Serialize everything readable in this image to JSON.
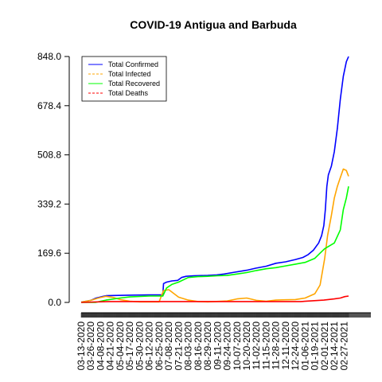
{
  "chart_data": {
    "type": "line",
    "title": "COVID-19 Antigua and Barbuda",
    "xlabel": "",
    "ylabel": "",
    "ylim": [
      0,
      848
    ],
    "yticks": [
      "0.0",
      "169.6",
      "339.2",
      "508.8",
      "678.4",
      "848.0"
    ],
    "xticks": [
      "03-13-2020",
      "03-26-2020",
      "04-08-2020",
      "04-21-2020",
      "05-04-2020",
      "05-17-2020",
      "05-30-2020",
      "06-12-2020",
      "06-25-2020",
      "07-08-2020",
      "07-21-2020",
      "08-03-2020",
      "08-16-2020",
      "08-29-2020",
      "09-11-2020",
      "09-24-2020",
      "10-07-2020",
      "10-20-2020",
      "11-02-2020",
      "11-15-2020",
      "11-28-2020",
      "12-11-2020",
      "12-24-2020",
      "01-06-2021",
      "01-19-2021",
      "02-01-2021",
      "02-14-2021",
      "02-27-2021"
    ],
    "x_start": "2020-03-13",
    "x_end": "2021-03-05",
    "legend_position": "top-left",
    "series": [
      {
        "name": "Total Confirmed",
        "color": "#0000ff",
        "dash": "solid",
        "points": [
          [
            "2020-03-13",
            1
          ],
          [
            "2020-03-26",
            7
          ],
          [
            "2020-04-02",
            15
          ],
          [
            "2020-04-08",
            19
          ],
          [
            "2020-04-15",
            23
          ],
          [
            "2020-04-25",
            24
          ],
          [
            "2020-05-15",
            25
          ],
          [
            "2020-06-12",
            26
          ],
          [
            "2020-06-30",
            26
          ],
          [
            "2020-07-01",
            65
          ],
          [
            "2020-07-05",
            70
          ],
          [
            "2020-07-12",
            74
          ],
          [
            "2020-07-20",
            76
          ],
          [
            "2020-07-25",
            86
          ],
          [
            "2020-07-31",
            90
          ],
          [
            "2020-08-10",
            92
          ],
          [
            "2020-08-29",
            93
          ],
          [
            "2020-09-10",
            95
          ],
          [
            "2020-09-20",
            98
          ],
          [
            "2020-10-01",
            103
          ],
          [
            "2020-10-20",
            111
          ],
          [
            "2020-11-01",
            118
          ],
          [
            "2020-11-15",
            125
          ],
          [
            "2020-11-28",
            135
          ],
          [
            "2020-12-11",
            140
          ],
          [
            "2020-12-24",
            148
          ],
          [
            "2021-01-03",
            155
          ],
          [
            "2021-01-10",
            165
          ],
          [
            "2021-01-17",
            180
          ],
          [
            "2021-01-24",
            205
          ],
          [
            "2021-01-28",
            230
          ],
          [
            "2021-01-31",
            265
          ],
          [
            "2021-02-02",
            320
          ],
          [
            "2021-02-04",
            400
          ],
          [
            "2021-02-06",
            440
          ],
          [
            "2021-02-10",
            470
          ],
          [
            "2021-02-14",
            520
          ],
          [
            "2021-02-18",
            600
          ],
          [
            "2021-02-22",
            700
          ],
          [
            "2021-02-26",
            780
          ],
          [
            "2021-03-02",
            830
          ],
          [
            "2021-03-05",
            848
          ]
        ]
      },
      {
        "name": "Total Infected",
        "color": "#ffa500",
        "dash": "dashed",
        "points": [
          [
            "2020-03-13",
            1
          ],
          [
            "2020-03-26",
            7
          ],
          [
            "2020-04-05",
            15
          ],
          [
            "2020-04-15",
            21
          ],
          [
            "2020-04-25",
            17
          ],
          [
            "2020-05-04",
            10
          ],
          [
            "2020-05-17",
            4
          ],
          [
            "2020-05-30",
            2
          ],
          [
            "2020-06-25",
            2
          ],
          [
            "2020-07-01",
            41
          ],
          [
            "2020-07-08",
            44
          ],
          [
            "2020-07-21",
            18
          ],
          [
            "2020-08-03",
            8
          ],
          [
            "2020-08-16",
            3
          ],
          [
            "2020-08-29",
            2
          ],
          [
            "2020-09-24",
            5
          ],
          [
            "2020-10-07",
            12
          ],
          [
            "2020-10-20",
            15
          ],
          [
            "2020-11-02",
            7
          ],
          [
            "2020-11-15",
            4
          ],
          [
            "2020-11-28",
            8
          ],
          [
            "2020-12-11",
            9
          ],
          [
            "2020-12-24",
            10
          ],
          [
            "2021-01-06",
            15
          ],
          [
            "2021-01-19",
            30
          ],
          [
            "2021-01-26",
            60
          ],
          [
            "2021-02-01",
            150
          ],
          [
            "2021-02-05",
            230
          ],
          [
            "2021-02-10",
            300
          ],
          [
            "2021-02-14",
            360
          ],
          [
            "2021-02-18",
            400
          ],
          [
            "2021-02-22",
            430
          ],
          [
            "2021-02-26",
            460
          ],
          [
            "2021-03-02",
            455
          ],
          [
            "2021-03-05",
            435
          ]
        ]
      },
      {
        "name": "Total Recovered",
        "color": "#00ff00",
        "dash": "solid",
        "points": [
          [
            "2020-03-13",
            0
          ],
          [
            "2020-04-01",
            0
          ],
          [
            "2020-04-15",
            8
          ],
          [
            "2020-05-04",
            15
          ],
          [
            "2020-05-17",
            19
          ],
          [
            "2020-06-12",
            22
          ],
          [
            "2020-06-30",
            22
          ],
          [
            "2020-07-05",
            50
          ],
          [
            "2020-07-12",
            62
          ],
          [
            "2020-07-21",
            70
          ],
          [
            "2020-08-03",
            86
          ],
          [
            "2020-08-16",
            89
          ],
          [
            "2020-08-29",
            90
          ],
          [
            "2020-09-11",
            92
          ],
          [
            "2020-09-24",
            93
          ],
          [
            "2020-10-07",
            98
          ],
          [
            "2020-10-20",
            103
          ],
          [
            "2020-11-02",
            110
          ],
          [
            "2020-11-15",
            116
          ],
          [
            "2020-11-28",
            120
          ],
          [
            "2020-12-11",
            126
          ],
          [
            "2020-12-24",
            132
          ],
          [
            "2021-01-06",
            138
          ],
          [
            "2021-01-19",
            152
          ],
          [
            "2021-01-26",
            170
          ],
          [
            "2021-02-01",
            185
          ],
          [
            "2021-02-14",
            205
          ],
          [
            "2021-02-22",
            250
          ],
          [
            "2021-02-26",
            320
          ],
          [
            "2021-03-02",
            360
          ],
          [
            "2021-03-05",
            400
          ]
        ]
      },
      {
        "name": "Total Deaths",
        "color": "#ff0000",
        "dash": "dashed",
        "points": [
          [
            "2020-03-13",
            0
          ],
          [
            "2020-04-05",
            2
          ],
          [
            "2020-04-20",
            3
          ],
          [
            "2020-06-01",
            3
          ],
          [
            "2020-07-15",
            3
          ],
          [
            "2020-08-15",
            3
          ],
          [
            "2020-12-31",
            3
          ],
          [
            "2021-01-31",
            8
          ],
          [
            "2021-02-14",
            12
          ],
          [
            "2021-02-22",
            15
          ],
          [
            "2021-02-28",
            20
          ],
          [
            "2021-03-05",
            22
          ]
        ]
      }
    ]
  }
}
